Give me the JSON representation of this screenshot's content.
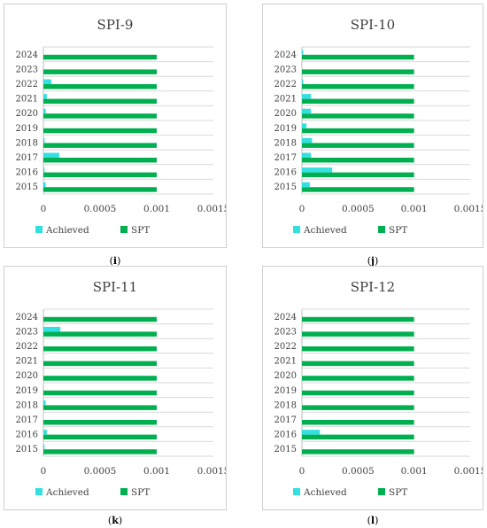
{
  "colors": {
    "achieved": "#33e0e0",
    "spt": "#00b050",
    "grid": "#d9d9d9",
    "text": "#404040"
  },
  "captions": [
    "i",
    "j",
    "k",
    "l"
  ],
  "chart_data": [
    {
      "type": "bar",
      "title": "SPI-9",
      "categories": [
        "2015",
        "2016",
        "2017",
        "2018",
        "2019",
        "2020",
        "2021",
        "2022",
        "2023",
        "2024"
      ],
      "series": [
        {
          "name": "Achieved",
          "values": [
            2e-05,
            1e-05,
            0.00014,
            1e-05,
            0,
            2e-05,
            3e-05,
            7e-05,
            0,
            0
          ]
        },
        {
          "name": "SPT",
          "values": [
            0.001,
            0.001,
            0.001,
            0.001,
            0.001,
            0.001,
            0.001,
            0.001,
            0.001,
            0.001
          ]
        }
      ],
      "xlim": [
        0,
        0.0015
      ],
      "xticks": [
        "0",
        "0.0005",
        "0.001",
        "0.0015"
      ],
      "legend": "bottom"
    },
    {
      "type": "bar",
      "title": "SPI-10",
      "categories": [
        "2015",
        "2016",
        "2017",
        "2018",
        "2019",
        "2020",
        "2021",
        "2022",
        "2023",
        "2024"
      ],
      "series": [
        {
          "name": "Achieved",
          "values": [
            7e-05,
            0.00027,
            8e-05,
            9e-05,
            4e-05,
            8e-05,
            8e-05,
            1e-05,
            0,
            1e-05
          ]
        },
        {
          "name": "SPT",
          "values": [
            0.001,
            0.001,
            0.001,
            0.001,
            0.001,
            0.001,
            0.001,
            0.001,
            0.001,
            0.001
          ]
        }
      ],
      "xlim": [
        0,
        0.0015
      ],
      "xticks": [
        "0",
        "0.0005",
        "0.001",
        "0.0015"
      ],
      "legend": "bottom"
    },
    {
      "type": "bar",
      "title": "SPI-11",
      "categories": [
        "2015",
        "2016",
        "2017",
        "2018",
        "2019",
        "2020",
        "2021",
        "2022",
        "2023",
        "2024"
      ],
      "series": [
        {
          "name": "Achieved",
          "values": [
            1e-05,
            3e-05,
            0,
            2e-05,
            0,
            0,
            0,
            0,
            0.00015,
            0
          ]
        },
        {
          "name": "SPT",
          "values": [
            0.001,
            0.001,
            0.001,
            0.001,
            0.001,
            0.001,
            0.001,
            0.001,
            0.001,
            0.001
          ]
        }
      ],
      "xlim": [
        0,
        0.0015
      ],
      "xticks": [
        "0",
        "0.0005",
        "0.001",
        "0.0015"
      ],
      "legend": "bottom"
    },
    {
      "type": "bar",
      "title": "SPI-12",
      "categories": [
        "2015",
        "2016",
        "2017",
        "2018",
        "2019",
        "2020",
        "2021",
        "2022",
        "2023",
        "2024"
      ],
      "series": [
        {
          "name": "Achieved",
          "values": [
            0,
            0.00016,
            0,
            0,
            0,
            0,
            0,
            0,
            0,
            0
          ]
        },
        {
          "name": "SPT",
          "values": [
            0.001,
            0.001,
            0.001,
            0.001,
            0.001,
            0.001,
            0.001,
            0.001,
            0.001,
            0.001
          ]
        }
      ],
      "xlim": [
        0,
        0.0015
      ],
      "xticks": [
        "0",
        "0.0005",
        "0.001",
        "0.0015"
      ],
      "legend": "bottom"
    }
  ]
}
